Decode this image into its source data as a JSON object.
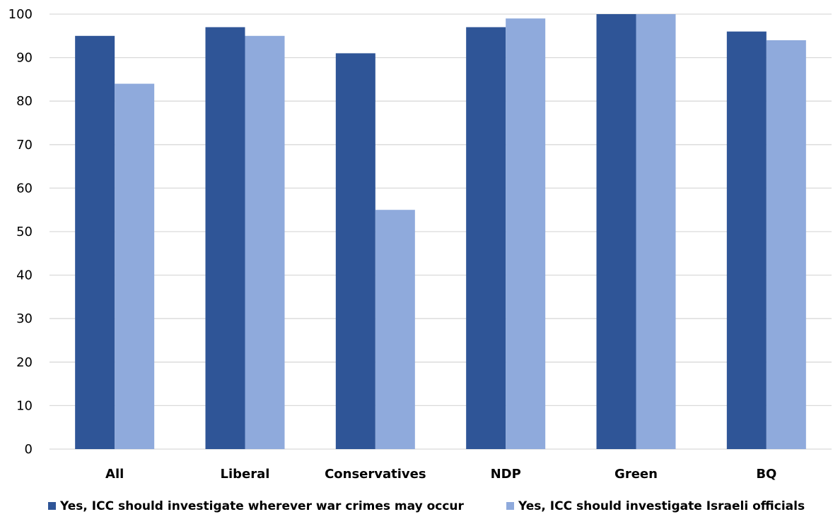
{
  "chart_data": {
    "type": "bar",
    "title": "",
    "xlabel": "",
    "ylabel": "",
    "ylim": [
      0,
      100
    ],
    "yticks": [
      0,
      10,
      20,
      30,
      40,
      50,
      60,
      70,
      80,
      90,
      100
    ],
    "grid": true,
    "legend_position": "bottom",
    "categories": [
      "All",
      "Liberal",
      "Conservatives",
      "NDP",
      "Green",
      "BQ"
    ],
    "series": [
      {
        "name": "Yes, ICC should investigate wherever war crimes may occur",
        "color": "#2f5597",
        "values": [
          95,
          97,
          91,
          97,
          100,
          96
        ]
      },
      {
        "name": "Yes, ICC should investigate Israeli officials",
        "color": "#8faadc",
        "values": [
          84,
          95,
          55,
          99,
          100,
          94
        ]
      }
    ]
  }
}
